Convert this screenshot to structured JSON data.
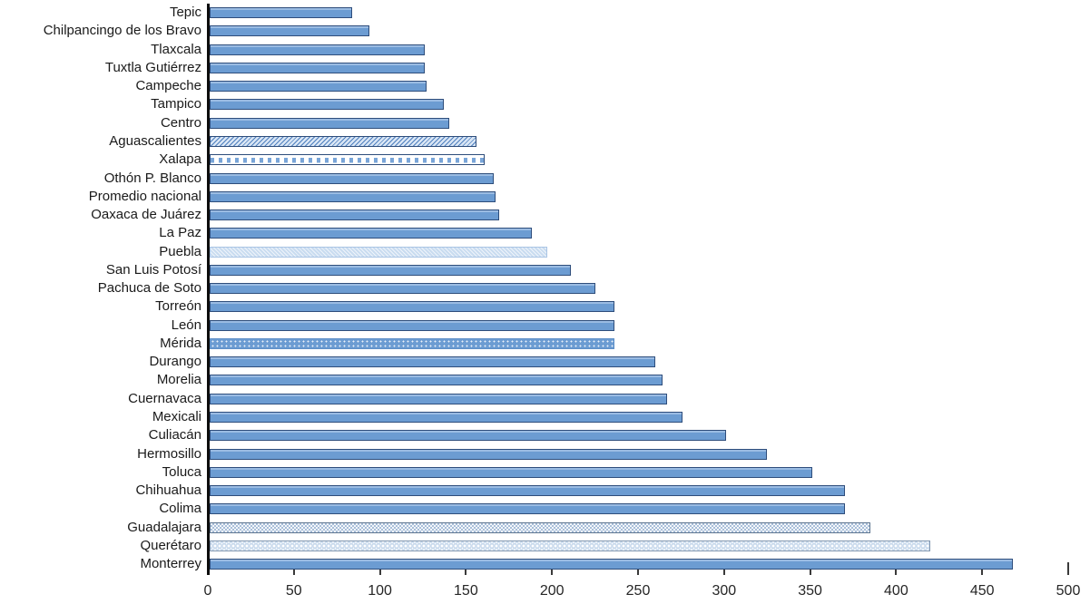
{
  "chart_data": {
    "type": "bar",
    "orientation": "horizontal",
    "title": "",
    "xlabel": "",
    "ylabel": "",
    "xlim": [
      0,
      500
    ],
    "x_ticks": [
      0,
      50,
      100,
      150,
      200,
      250,
      300,
      350,
      400,
      450,
      500
    ],
    "grid": false,
    "legend": "none",
    "categories": [
      "Tepic",
      "Chilpancingo de los Bravo",
      "Tlaxcala",
      "Tuxtla Gutiérrez",
      "Campeche",
      "Tampico",
      "Centro",
      "Aguascalientes",
      "Xalapa",
      "Othón P. Blanco",
      "Promedio nacional",
      "Oaxaca de Juárez",
      "La Paz",
      "Puebla",
      "San Luis Potosí",
      "Pachuca de Soto",
      "Torreón",
      "León",
      "Mérida",
      "Durango",
      "Morelia",
      "Cuernavaca",
      "Mexicali",
      "Culiacán",
      "Hermosillo",
      "Toluca",
      "Chihuahua",
      "Colima",
      "Guadalajara",
      "Querétaro",
      "Monterrey"
    ],
    "values": [
      83,
      93,
      125,
      125,
      126,
      136,
      139,
      155,
      160,
      165,
      166,
      168,
      187,
      196,
      210,
      224,
      235,
      235,
      235,
      259,
      263,
      266,
      275,
      300,
      324,
      350,
      369,
      369,
      384,
      419,
      467
    ],
    "bar_patterns": [
      "solid",
      "solid",
      "solid",
      "solid",
      "solid",
      "solid",
      "solid",
      "hatch",
      "dash",
      "solid",
      "solid",
      "solid",
      "solid",
      "texture",
      "solid",
      "solid",
      "solid",
      "solid",
      "dots",
      "solid",
      "solid",
      "solid",
      "solid",
      "solid",
      "solid",
      "solid",
      "solid",
      "solid",
      "checker",
      "lattice",
      "solid"
    ],
    "colors": {
      "bar_fill": "#6C9CD2",
      "bar_highlight": "#9BBCE3",
      "bar_border": "#2E4D7B",
      "pattern_light_fill": "#C9DCF0",
      "axis_line": "#0d0d0d",
      "tick_color": "#3a3a3a",
      "text_color": "#1a1a1a"
    }
  }
}
